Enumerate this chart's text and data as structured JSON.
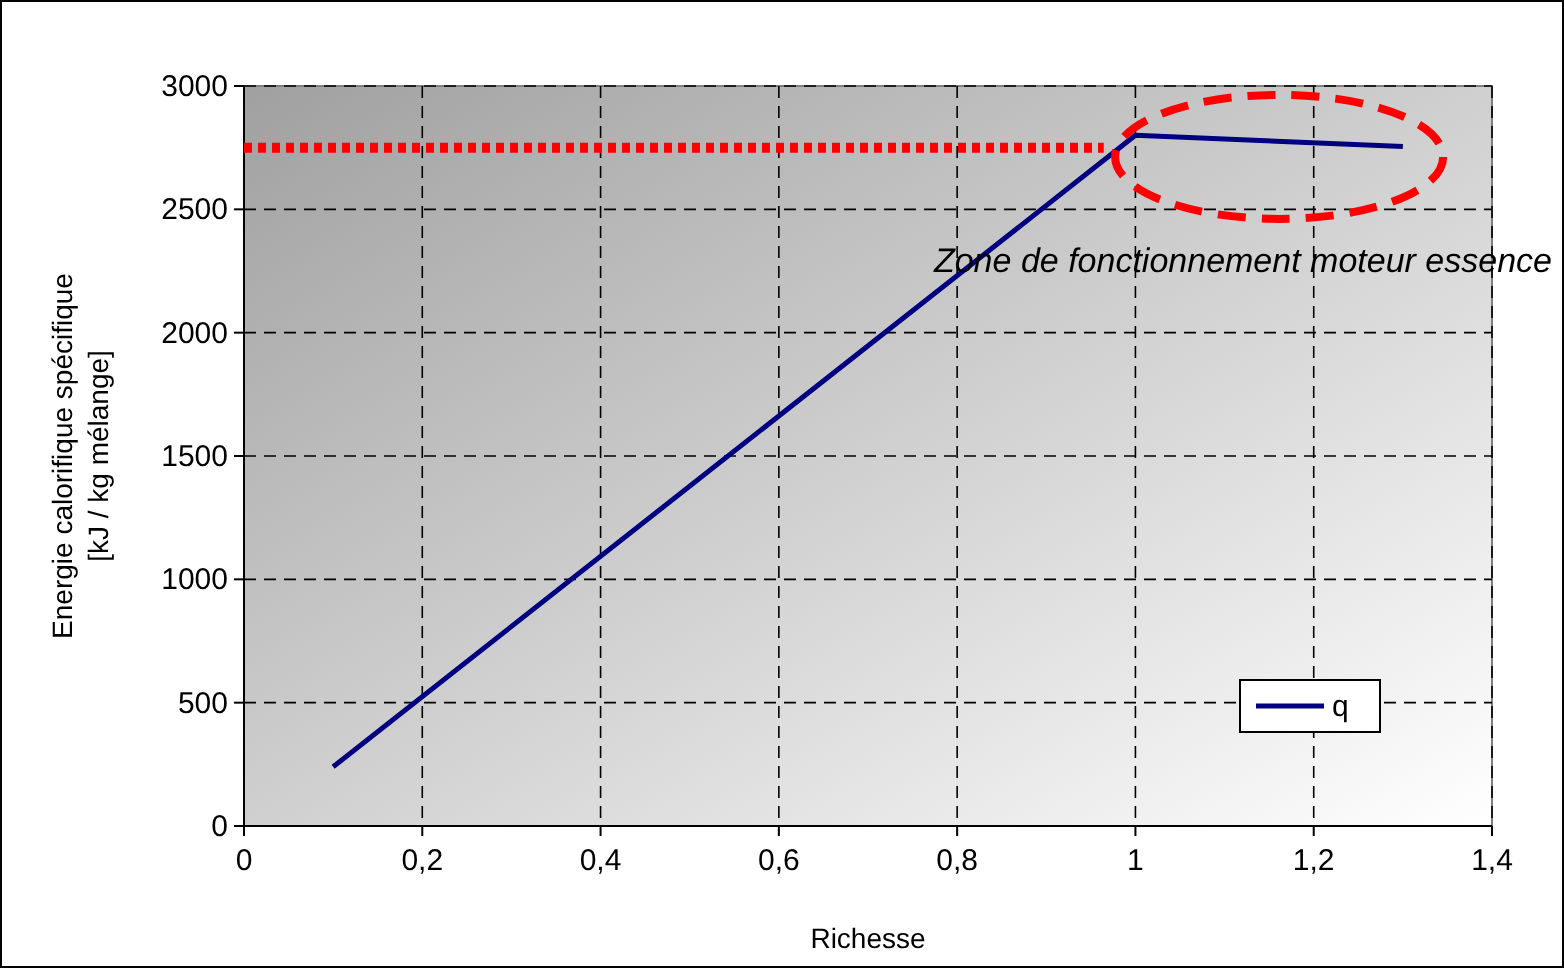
{
  "chart_data": {
    "type": "line",
    "xlabel": "Richesse",
    "ylabel": "Energie calorifique spécifique\n[kJ / kg mélange]",
    "x": [
      0.1,
      1,
      1.3
    ],
    "series": [
      {
        "name": "q",
        "color": "#000080",
        "values": [
          240,
          2800,
          2755
        ]
      }
    ],
    "xlim": [
      0,
      1.4
    ],
    "xticks": [
      0,
      {
        "value": 0.2,
        "label": "0,2"
      },
      {
        "value": 0.4,
        "label": "0,4"
      },
      {
        "value": 0.6,
        "label": "0,6"
      },
      {
        "value": 0.8,
        "label": "0,8"
      },
      1,
      {
        "value": 1.2,
        "label": "1,2"
      },
      {
        "value": 1.4,
        "label": "1,4"
      }
    ],
    "ylim": [
      0,
      3000
    ],
    "yticks": [
      0,
      500,
      1000,
      1500,
      2000,
      2500,
      3000
    ],
    "grid": true,
    "legend": "bottom right",
    "marker": "none",
    "line_style": "solid",
    "ref_lines": [
      {
        "axis": "y",
        "value": 2750,
        "color": "#ff0000",
        "line_style": "dotted"
      }
    ],
    "annotations": [
      "Zone de fonctionnement moteur essence"
    ]
  }
}
